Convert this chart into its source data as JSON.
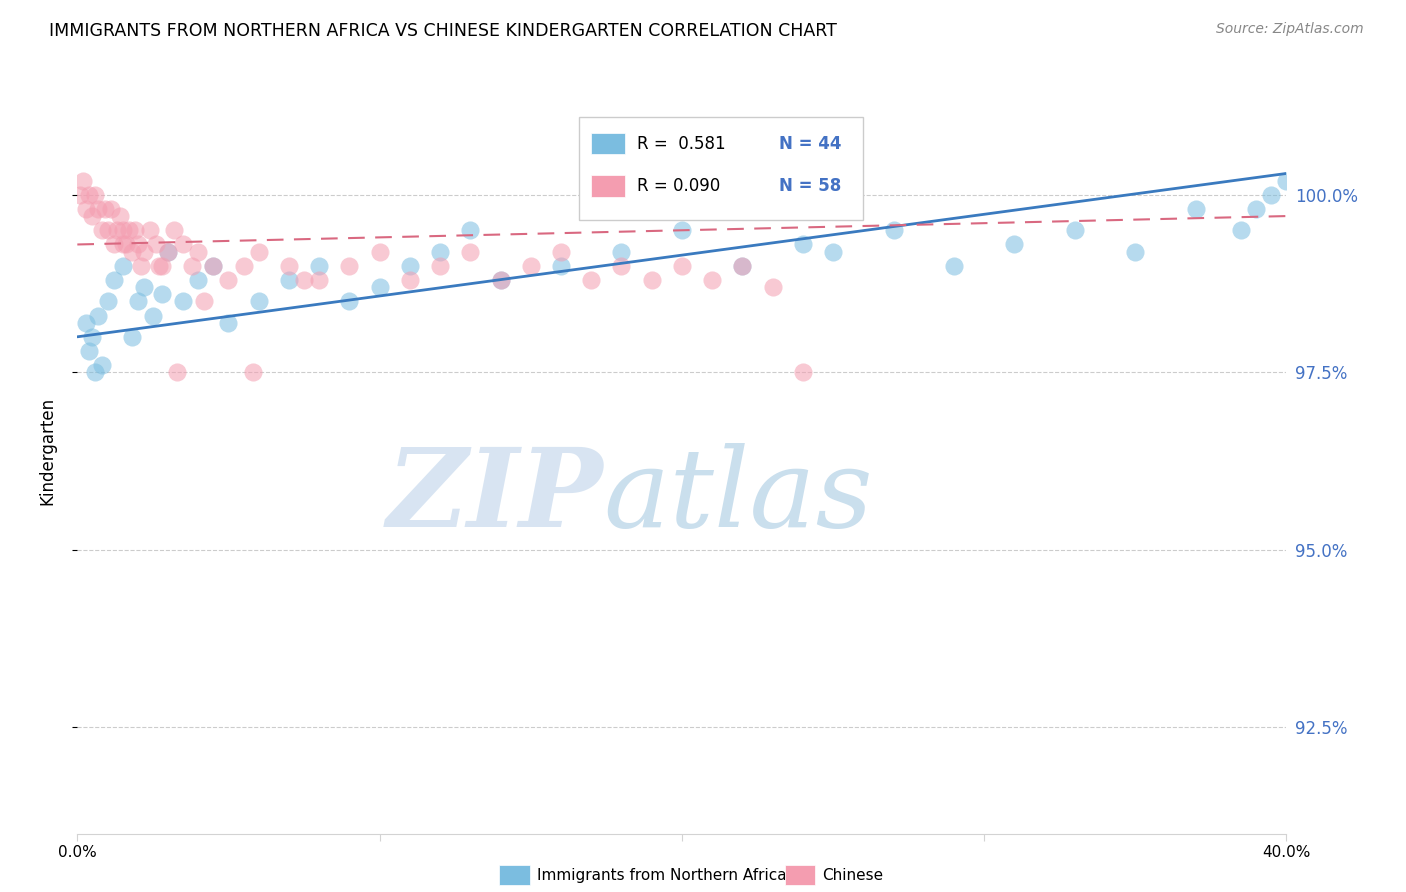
{
  "title": "IMMIGRANTS FROM NORTHERN AFRICA VS CHINESE KINDERGARTEN CORRELATION CHART",
  "source": "Source: ZipAtlas.com",
  "ylabel": "Kindergarten",
  "legend_label_blue": "Immigrants from Northern Africa",
  "legend_label_pink": "Chinese",
  "watermark_zip": "ZIP",
  "watermark_atlas": "atlas",
  "x_range": [
    0.0,
    40.0
  ],
  "y_range": [
    91.0,
    101.8
  ],
  "y_ticks": [
    92.5,
    95.0,
    97.5,
    100.0
  ],
  "y_tick_labels": [
    "92.5%",
    "95.0%",
    "97.5%",
    "100.0%"
  ],
  "blue_R": 0.581,
  "blue_N": 44,
  "pink_R": 0.09,
  "pink_N": 58,
  "blue_color": "#7bbde0",
  "pink_color": "#f49db0",
  "blue_line_color": "#3a7abf",
  "pink_line_color": "#d96880",
  "grid_color": "#cccccc",
  "right_tick_color": "#4472c4",
  "blue_scatter_x": [
    0.3,
    0.4,
    0.5,
    0.6,
    0.7,
    0.8,
    1.0,
    1.2,
    1.5,
    1.8,
    2.0,
    2.2,
    2.5,
    2.8,
    3.0,
    3.5,
    4.0,
    4.5,
    5.0,
    6.0,
    7.0,
    8.0,
    9.0,
    10.0,
    11.0,
    12.0,
    13.0,
    14.0,
    16.0,
    18.0,
    20.0,
    22.0,
    24.0,
    25.0,
    27.0,
    29.0,
    31.0,
    33.0,
    35.0,
    37.0,
    38.5,
    39.0,
    39.5,
    40.0
  ],
  "blue_scatter_y": [
    98.2,
    97.8,
    98.0,
    97.5,
    98.3,
    97.6,
    98.5,
    98.8,
    99.0,
    98.0,
    98.5,
    98.7,
    98.3,
    98.6,
    99.2,
    98.5,
    98.8,
    99.0,
    98.2,
    98.5,
    98.8,
    99.0,
    98.5,
    98.7,
    99.0,
    99.2,
    99.5,
    98.8,
    99.0,
    99.2,
    99.5,
    99.0,
    99.3,
    99.2,
    99.5,
    99.0,
    99.3,
    99.5,
    99.2,
    99.8,
    99.5,
    99.8,
    100.0,
    100.2
  ],
  "pink_scatter_x": [
    0.1,
    0.2,
    0.3,
    0.4,
    0.5,
    0.6,
    0.7,
    0.8,
    0.9,
    1.0,
    1.1,
    1.2,
    1.3,
    1.4,
    1.5,
    1.6,
    1.7,
    1.8,
    1.9,
    2.0,
    2.1,
    2.2,
    2.4,
    2.6,
    2.8,
    3.0,
    3.2,
    3.5,
    3.8,
    4.0,
    4.5,
    5.0,
    5.5,
    6.0,
    7.0,
    8.0,
    9.0,
    10.0,
    11.0,
    12.0,
    13.0,
    14.0,
    15.0,
    16.0,
    17.0,
    18.0,
    19.0,
    20.0,
    21.0,
    22.0,
    23.0,
    24.0,
    7.5,
    5.8,
    4.2,
    3.3,
    2.7,
    1.5
  ],
  "pink_scatter_y": [
    100.0,
    100.2,
    99.8,
    100.0,
    99.7,
    100.0,
    99.8,
    99.5,
    99.8,
    99.5,
    99.8,
    99.3,
    99.5,
    99.7,
    99.5,
    99.3,
    99.5,
    99.2,
    99.5,
    99.3,
    99.0,
    99.2,
    99.5,
    99.3,
    99.0,
    99.2,
    99.5,
    99.3,
    99.0,
    99.2,
    99.0,
    98.8,
    99.0,
    99.2,
    99.0,
    98.8,
    99.0,
    99.2,
    98.8,
    99.0,
    99.2,
    98.8,
    99.0,
    99.2,
    98.8,
    99.0,
    98.8,
    99.0,
    98.8,
    99.0,
    98.7,
    97.5,
    98.8,
    97.5,
    98.5,
    97.5,
    99.0,
    99.3
  ]
}
